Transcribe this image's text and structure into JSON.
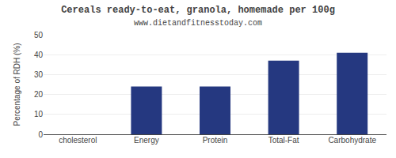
{
  "chart_data": {
    "type": "bar",
    "title": "Cereals ready-to-eat, granola, homemade per 100g",
    "subtitle": "www.dietandfitnesstoday.com",
    "categories": [
      "cholesterol",
      "Energy",
      "Protein",
      "Total-Fat",
      "Carbohydrate"
    ],
    "values": [
      0,
      24,
      24,
      37,
      41
    ],
    "color": "#253880",
    "ylabel": "Percentage of RDH (%)",
    "ylim": [
      0,
      50
    ],
    "yticks": [
      0,
      10,
      20,
      30,
      40,
      50
    ],
    "grid": true
  }
}
